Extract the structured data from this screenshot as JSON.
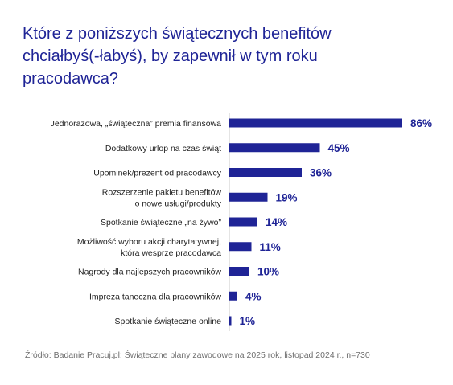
{
  "title_lines": [
    "Które z poniższych świątecznych benefitów",
    "chciałbyś(-łabyś), by zapewnił w tym roku",
    "pracodawca?"
  ],
  "source": "Źródło: Badanie Pracuj.pl: Świąteczne plany zawodowe na 2025 rok, listopad 2024 r., n=730",
  "colors": {
    "bar": "#1f2496",
    "title": "#1f2496",
    "label": "#222222",
    "axis": "#c8c8c8"
  },
  "chart_data": {
    "type": "bar",
    "orientation": "horizontal",
    "categories": [
      [
        "Jednorazowa, „świąteczna” premia finansowa"
      ],
      [
        "Dodatkowy urlop na czas świąt"
      ],
      [
        "Upominek/prezent od pracodawcy"
      ],
      [
        "Rozszerzenie pakietu benefitów",
        "o nowe usługi/produkty"
      ],
      [
        "Spotkanie świąteczne „na żywo”"
      ],
      [
        "Możliwość wyboru akcji charytatywnej,",
        "która wesprze pracodawca"
      ],
      [
        "Nagrody dla najlepszych pracowników"
      ],
      [
        "Impreza taneczna dla pracowników"
      ],
      [
        "Spotkanie świąteczne online"
      ]
    ],
    "values": [
      86,
      45,
      36,
      19,
      14,
      11,
      10,
      4,
      1
    ],
    "value_labels": [
      "86%",
      "45%",
      "36%",
      "19%",
      "14%",
      "11%",
      "10%",
      "4%",
      "1%"
    ],
    "xlim": [
      0,
      86
    ],
    "grid": false,
    "legend": "none"
  }
}
